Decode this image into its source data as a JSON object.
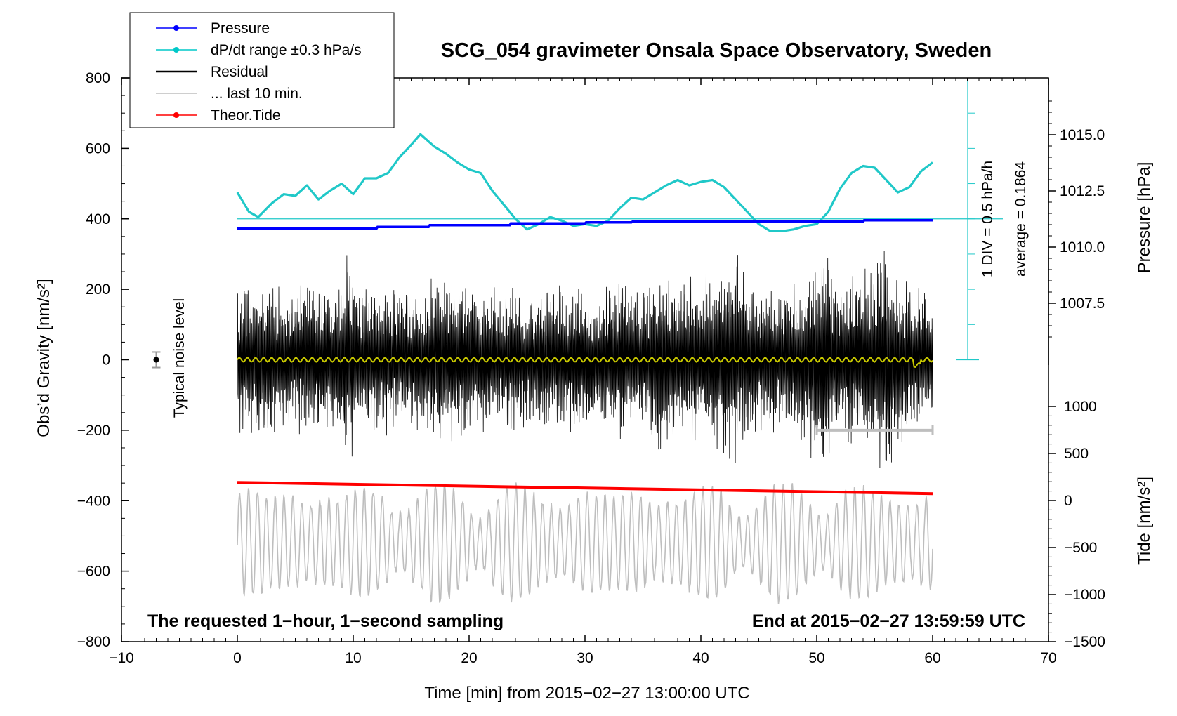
{
  "chart_data": {
    "type": "line",
    "title": "SCG_054 gravimeter Onsala Space Observatory, Sweden",
    "xlabel": "Time [min] from 2015−02−27 13:00:00 UTC",
    "ylabel_left": "Obs’d Gravity [nm/s²]",
    "ylabel_right_pressure": "Pressure [hPa]",
    "ylabel_right_tide": "Tide [nm/s²]",
    "xlim": [
      -10,
      70
    ],
    "ylim": [
      -800,
      800
    ],
    "x_ticks": [
      "−10",
      "0",
      "10",
      "20",
      "30",
      "40",
      "50",
      "60",
      "70"
    ],
    "y_ticks": [
      "800",
      "600",
      "400",
      "200",
      "0",
      "−200",
      "−400",
      "−600",
      "−800"
    ],
    "pressure_ticks": [
      "1015.0",
      "1012.5",
      "1010.0",
      "1007.5"
    ],
    "tide_ticks": [
      "1000",
      "500",
      "0",
      "−500",
      "−1000",
      "−1500"
    ],
    "footer_left": "The requested 1−hour, 1−second sampling",
    "footer_right": "End at 2015−02−27 13:59:59 UTC",
    "noise_label": "Typical noise level",
    "dpdt_scale_label": "1 DIV = 0.5 hPa/h",
    "dpdt_average_label": "average = 0.1864",
    "legend": [
      {
        "label": "Pressure",
        "color": "#0000ff",
        "marker": true
      },
      {
        "label": "dP/dt range ±0.3 hPa/s",
        "color": "#00c8c8",
        "marker": true
      },
      {
        "label": "Residual",
        "color": "#000000",
        "marker": false
      },
      {
        "label": "... last 10 min.",
        "color": "#bebebe",
        "marker": false
      },
      {
        "label": "Theor.Tide",
        "color": "#ff0000",
        "marker": true
      }
    ],
    "colors": {
      "pressure": "#0000ff",
      "dpdt": "#20c8c8",
      "residual": "#000000",
      "last10": "#bebebe",
      "tide": "#ff0000",
      "smoothed": "#c8c800"
    },
    "series": [
      {
        "name": "dP/dt (cyan, plotted in gravity units)",
        "x": [
          0,
          1,
          1.8,
          3,
          4,
          5,
          6,
          7,
          8,
          9,
          10,
          11,
          12,
          13,
          14,
          15,
          15.8,
          17,
          18,
          19,
          20,
          21,
          22,
          23,
          24,
          25,
          26,
          27,
          28,
          29,
          30,
          31,
          32,
          33,
          34,
          35,
          36,
          37,
          38,
          39,
          40,
          41,
          42,
          43,
          44,
          45,
          46,
          47,
          48,
          49,
          50,
          51,
          52,
          53,
          54,
          55,
          56,
          57,
          58,
          59,
          60
        ],
        "values": [
          475,
          420,
          405,
          445,
          470,
          465,
          495,
          455,
          480,
          500,
          470,
          515,
          515,
          530,
          575,
          610,
          640,
          605,
          585,
          560,
          540,
          530,
          480,
          440,
          400,
          370,
          385,
          405,
          395,
          380,
          385,
          380,
          395,
          430,
          460,
          455,
          475,
          495,
          510,
          495,
          505,
          510,
          490,
          455,
          420,
          385,
          365,
          365,
          370,
          380,
          385,
          420,
          485,
          530,
          550,
          545,
          510,
          475,
          490,
          535,
          560
        ]
      },
      {
        "name": "Pressure",
        "x": [
          0,
          12,
          12.1,
          16.5,
          16.6,
          23.5,
          23.6,
          30,
          30.1,
          34,
          34.1,
          54,
          54.1,
          60
        ],
        "values": [
          372,
          372,
          377,
          377,
          382,
          382,
          387,
          387,
          390,
          390,
          392,
          392,
          396,
          396
        ]
      },
      {
        "name": "Theor.Tide",
        "x": [
          0,
          60
        ],
        "values": [
          -348,
          -380
        ]
      }
    ],
    "residual_envelope": {
      "note": "black residual oscillation amplitude envelope (nm/s²)",
      "x": [
        0,
        2,
        4,
        6,
        8,
        9.5,
        11,
        13,
        15,
        17,
        19,
        21,
        23,
        25,
        27,
        29,
        31,
        33,
        35,
        36.5,
        38,
        40,
        42,
        43,
        45,
        47,
        49,
        50.5,
        52,
        54,
        56,
        58,
        60
      ],
      "values": [
        210,
        240,
        200,
        230,
        210,
        320,
        200,
        220,
        200,
        260,
        240,
        210,
        220,
        190,
        230,
        210,
        200,
        230,
        200,
        320,
        220,
        250,
        280,
        320,
        220,
        210,
        240,
        360,
        230,
        260,
        350,
        240,
        170
      ]
    },
    "last10_bar": {
      "x": [
        50,
        60
      ],
      "value": -200
    }
  }
}
